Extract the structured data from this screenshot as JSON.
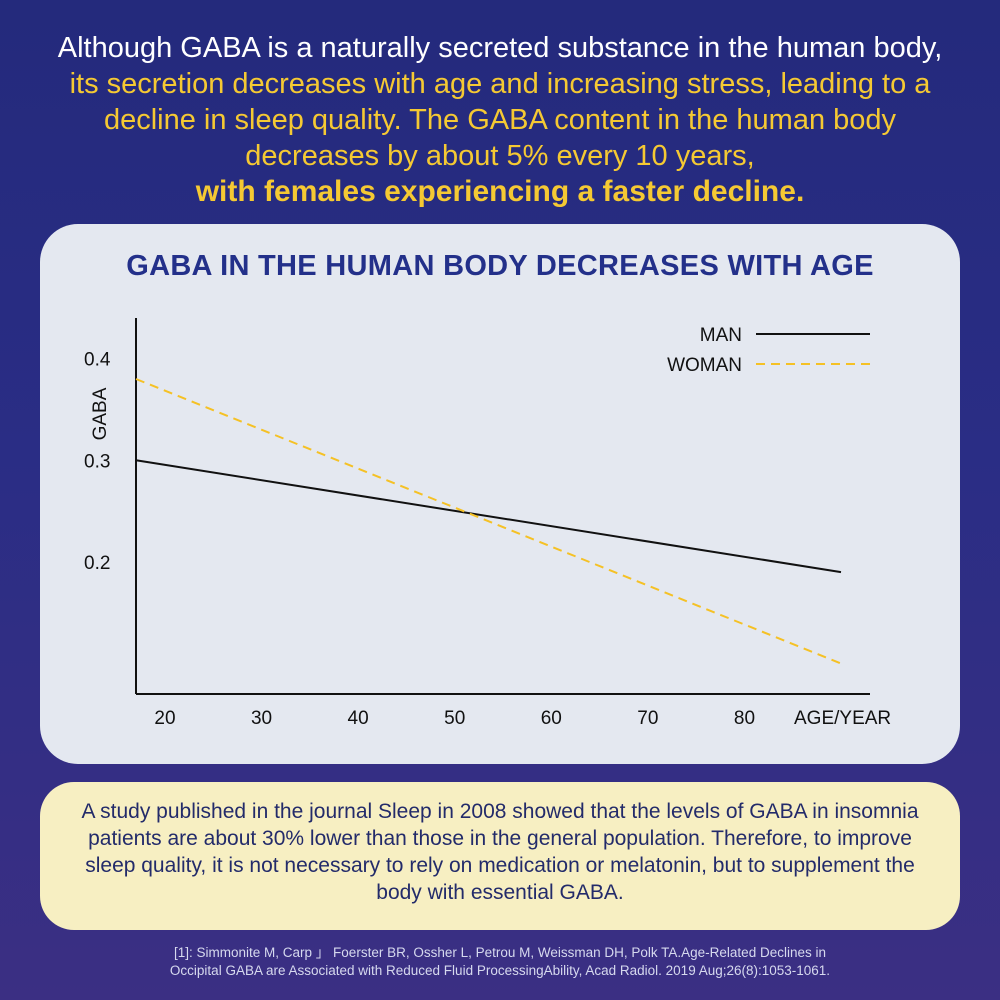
{
  "headline": {
    "part1": "Although GABA is a naturally secreted substance in the human body,",
    "part2": " its secretion decreases with age and increasing stress, leading to a decline in sleep quality. The GABA content in the human body decreases by about 5% every 10 years,",
    "part3": "with females experiencing a faster decline."
  },
  "chart_data": {
    "type": "line",
    "title": "GABA IN THE HUMAN BODY DECREASES WITH AGE",
    "xlabel": "AGE/YEAR",
    "ylabel": "GABA",
    "x_ticks": [
      20,
      30,
      40,
      50,
      60,
      70,
      80
    ],
    "y_ticks": [
      0.2,
      0.3,
      0.4
    ],
    "xlim": [
      17,
      93
    ],
    "ylim": [
      0.07,
      0.44
    ],
    "legend_position": "top-right",
    "grid": false,
    "series": [
      {
        "name": "MAN",
        "style": "solid",
        "color": "#111111",
        "x": [
          17,
          90
        ],
        "y": [
          0.3,
          0.19
        ]
      },
      {
        "name": "WOMAN",
        "style": "dashed",
        "color": "#f5c125",
        "x": [
          17,
          90
        ],
        "y": [
          0.38,
          0.1
        ]
      }
    ]
  },
  "study": {
    "text": "A study published in the journal Sleep in 2008 showed that the levels of GABA in insomnia patients are about 30% lower than those in the general population. Therefore, to improve sleep quality, it is not necessary to rely on medication or melatonin, but to supplement the body with essential GABA."
  },
  "reference": {
    "line1": "[1]: Simmonite M, Carp 」 Foerster BR, Ossher L, Petrou M, Weissman DH, Polk TA.Age-Related Declines in",
    "line2": "Occipital GABA are Associated with Reduced Fluid ProcessingAbility, Acad Radiol. 2019 Aug;26(8):1053-1061."
  }
}
